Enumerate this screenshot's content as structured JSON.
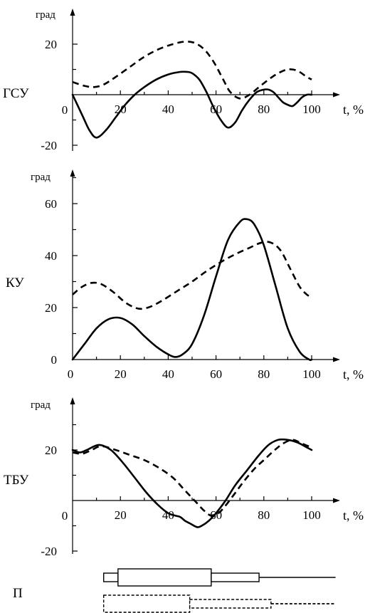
{
  "chart_data": [
    {
      "type": "line",
      "joint_label": "ГСУ",
      "y_unit": "град",
      "x_axis_label": "t, %",
      "xlim": [
        0,
        100
      ],
      "ylim": [
        -20,
        30
      ],
      "x_ticks": [
        "0",
        "20",
        "40",
        "60",
        "80",
        "100"
      ],
      "y_ticks": [
        "20",
        "-20"
      ],
      "series": [
        {
          "style": "solid",
          "x": [
            0,
            4,
            7,
            10,
            14,
            18,
            22,
            26,
            30,
            35,
            40,
            45,
            48,
            50,
            53,
            56,
            59,
            62,
            65,
            68,
            71,
            74,
            77,
            80,
            82,
            84,
            86,
            88,
            90,
            92,
            94,
            96,
            98,
            100
          ],
          "y": [
            0,
            -8,
            -14,
            -17,
            -14,
            -9,
            -4,
            0,
            3,
            6,
            8,
            9,
            9,
            8.5,
            6,
            1,
            -5,
            -10,
            -13,
            -11,
            -6,
            -2,
            1,
            2,
            2,
            1,
            -1,
            -3,
            -4,
            -4.5,
            -3,
            -1,
            0,
            0
          ]
        },
        {
          "style": "dashed",
          "x": [
            0,
            5,
            9,
            13,
            18,
            24,
            30,
            36,
            42,
            47,
            51,
            55,
            59,
            63,
            66,
            70,
            74,
            78,
            82,
            86,
            90,
            94,
            98,
            100
          ],
          "y": [
            5,
            3.5,
            3,
            4,
            7,
            11,
            15,
            18,
            20,
            21,
            20.5,
            18,
            13,
            6,
            1,
            -1.5,
            0,
            3,
            6,
            8.5,
            10,
            9.5,
            7,
            6
          ]
        }
      ]
    },
    {
      "type": "line",
      "joint_label": "КУ",
      "y_unit": "град",
      "x_axis_label": "t, %",
      "xlim": [
        0,
        100
      ],
      "ylim": [
        0,
        70
      ],
      "x_ticks": [
        "0",
        "20",
        "40",
        "60",
        "80",
        "100"
      ],
      "y_ticks": [
        "0",
        "20",
        "40",
        "60"
      ],
      "series": [
        {
          "style": "solid",
          "x": [
            0,
            5,
            10,
            15,
            20,
            25,
            30,
            35,
            40,
            43,
            46,
            50,
            55,
            60,
            65,
            70,
            73,
            76,
            80,
            85,
            90,
            95,
            99,
            100
          ],
          "y": [
            0,
            6,
            12,
            15.5,
            16,
            13.5,
            9,
            5,
            2,
            1,
            2,
            6,
            17,
            32,
            46,
            53,
            54,
            52,
            44,
            28,
            12,
            3,
            0,
            0
          ]
        },
        {
          "style": "dashed",
          "x": [
            0,
            4,
            8,
            12,
            17,
            22,
            26,
            29,
            33,
            38,
            44,
            50,
            56,
            62,
            68,
            74,
            79,
            83,
            87,
            91,
            95,
            98,
            100
          ],
          "y": [
            25,
            28,
            29.5,
            29,
            26,
            22,
            20,
            19.5,
            20.5,
            23,
            26.5,
            30,
            34,
            37.5,
            40.5,
            43,
            45,
            45,
            42,
            35,
            28,
            25,
            24
          ]
        }
      ]
    },
    {
      "type": "line",
      "joint_label": "ТБУ",
      "y_unit": "град",
      "x_axis_label": "t, %",
      "xlim": [
        0,
        100
      ],
      "ylim": [
        -20,
        30
      ],
      "x_ticks": [
        "0",
        "20",
        "40",
        "60",
        "80",
        "100"
      ],
      "y_ticks": [
        "20",
        "-20"
      ],
      "series": [
        {
          "style": "solid",
          "x": [
            0,
            3,
            6,
            11,
            16,
            21,
            26,
            31,
            36,
            40,
            43,
            45,
            47,
            49,
            52,
            54,
            57,
            60,
            64,
            68,
            73,
            78,
            82,
            86,
            90,
            94,
            98,
            100
          ],
          "y": [
            20,
            19,
            20,
            22,
            20,
            15,
            9,
            3,
            -2,
            -5,
            -6,
            -6.5,
            -8,
            -9,
            -10.5,
            -10,
            -8,
            -5,
            0,
            6,
            12,
            18,
            22,
            24,
            24,
            23,
            21,
            20
          ]
        },
        {
          "style": "dashed",
          "x": [
            0,
            4,
            8,
            12,
            18,
            24,
            30,
            36,
            42,
            47,
            52,
            55,
            58,
            61,
            64,
            68,
            72,
            76,
            80,
            84,
            88,
            92,
            96,
            100
          ],
          "y": [
            19,
            18.5,
            20,
            21.5,
            20,
            18,
            16,
            13,
            9,
            4,
            -1,
            -4,
            -6,
            -5,
            -2,
            3,
            8,
            12.5,
            16,
            19.5,
            22.5,
            24,
            22.5,
            21
          ]
        }
      ]
    },
    {
      "type": "other",
      "label": "П",
      "x_range": [
        0,
        100
      ],
      "rows": [
        {
          "style": "solid",
          "segments": [
            {
              "x0": 13,
              "x1": 19,
              "level": "thin"
            },
            {
              "x0": 19,
              "x1": 58,
              "level": "thick"
            },
            {
              "x0": 58,
              "x1": 78,
              "level": "thin"
            },
            {
              "x0": 78,
              "x1": 110,
              "level": "line"
            }
          ]
        },
        {
          "style": "dashed",
          "segments": [
            {
              "x0": 13,
              "x1": 49,
              "level": "thick"
            },
            {
              "x0": 49,
              "x1": 83,
              "level": "thin"
            },
            {
              "x0": 83,
              "x1": 110,
              "level": "line"
            }
          ]
        }
      ]
    }
  ]
}
